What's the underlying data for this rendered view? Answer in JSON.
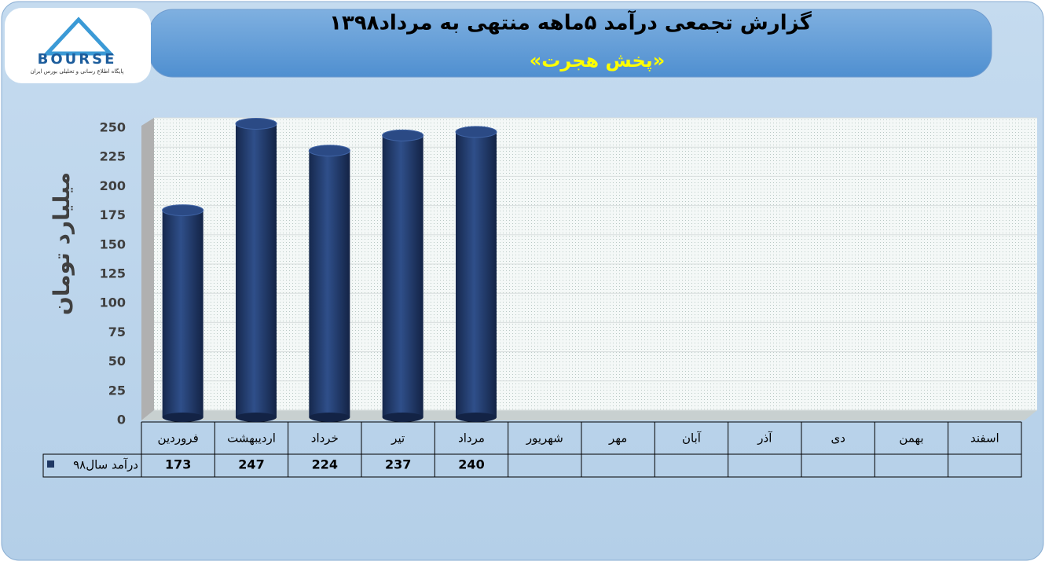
{
  "header": {
    "logo": "BOURSE",
    "logo_caption": "پایگاه اطلاع رسانی و تحلیلی بورس ایران"
  },
  "chart_data": {
    "type": "bar",
    "title": "گزارش تجمعی درآمد  ۵ماهه منتهی به مرداد۱۳۹۸",
    "subtitle": "«پخش هجرت»",
    "y_label": "میلیارد تومان",
    "categories": [
      "فروردین",
      "اردیبهشت",
      "خرداد",
      "تیر",
      "مرداد",
      "شهریور",
      "مهر",
      "آبان",
      "آذر",
      "دی",
      "بهمن",
      "اسفند"
    ],
    "series": [
      {
        "name": "درآمد سال۹۸",
        "color": "#1f3864",
        "values": [
          173,
          247,
          224,
          237,
          240,
          null,
          null,
          null,
          null,
          null,
          null,
          null
        ]
      }
    ],
    "ylim": [
      0,
      250
    ],
    "yticks": [
      0,
      25,
      50,
      75,
      100,
      125,
      150,
      175,
      200,
      225,
      250
    ],
    "grid": true,
    "data_table": true
  }
}
